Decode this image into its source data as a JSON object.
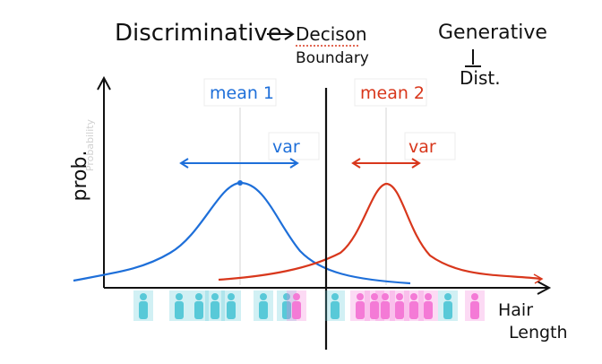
{
  "header": {
    "discriminative": "Discriminative",
    "decision": "Decison",
    "boundary": "Boundary",
    "generative": "Generative",
    "dist": "Dist."
  },
  "axes": {
    "ylabel": "prob.",
    "ylabel_faint": "Probability",
    "xlabel_line1": "Hair",
    "xlabel_line2": "Length"
  },
  "blue_distribution": {
    "mean_label": "mean 1",
    "var_label": "var",
    "color": "#1e6fd9"
  },
  "red_distribution": {
    "mean_label": "mean 2",
    "var_label": "var",
    "color": "#d8371c"
  },
  "colors": {
    "ink": "#111111",
    "boundary_underline": "#d8371c",
    "cyan_figure": "#58c9d8",
    "pink_figure": "#f47ad6"
  },
  "data_strip": {
    "figures": [
      "cyan",
      "cyan",
      "cyan",
      "cyan",
      "cyan",
      "cyan",
      "cyan",
      "pink",
      "cyan",
      "pink",
      "pink",
      "pink",
      "pink",
      "pink",
      "pink",
      "cyan",
      "pink"
    ]
  }
}
